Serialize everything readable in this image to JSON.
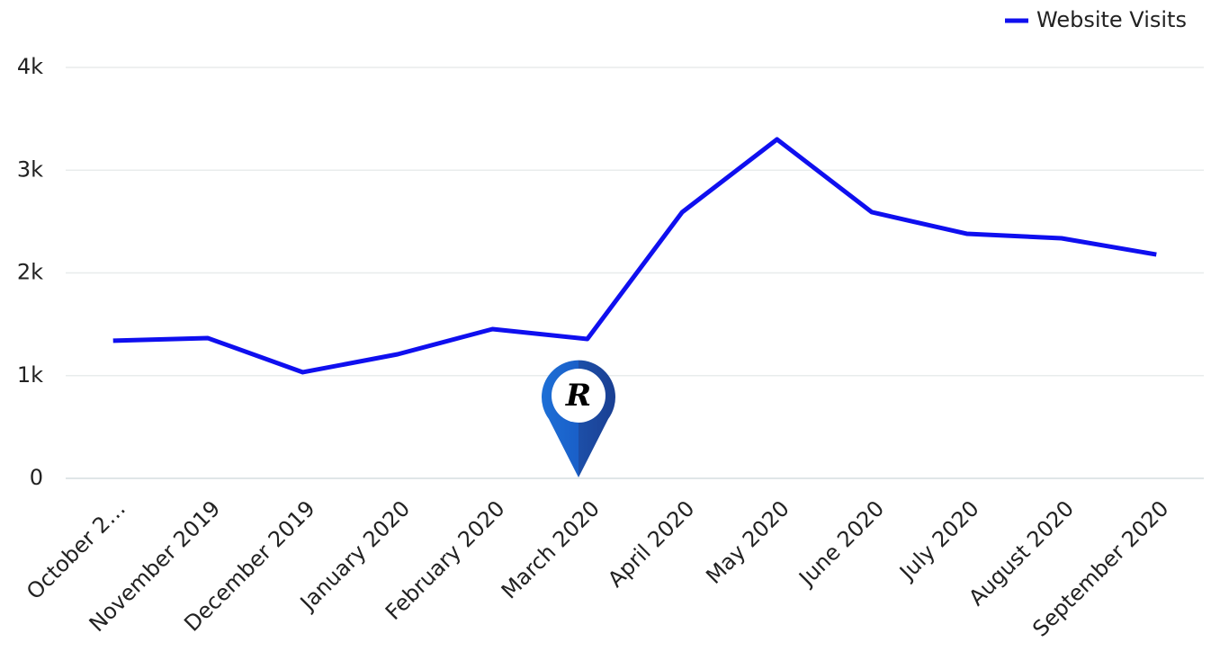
{
  "chart_data": {
    "type": "line",
    "categories": [
      "October 2…",
      "November 2019",
      "December 2019",
      "January 2020",
      "February 2020",
      "March 2020",
      "April 2020",
      "May 2020",
      "June 2020",
      "July 2020",
      "August 2020",
      "September 2020"
    ],
    "series": [
      {
        "name": "Website Visits",
        "color": "#0f0fef",
        "values": [
          1340,
          1365,
          1033,
          1208,
          1453,
          1357,
          2591,
          3300,
          2591,
          2381,
          2337,
          2179
        ]
      }
    ],
    "ylim": [
      0,
      4000
    ],
    "yticks": [
      0,
      {
        "value": 1000,
        "label": "1k"
      },
      {
        "value": 2000,
        "label": "2k"
      },
      {
        "value": 3000,
        "label": "3k"
      },
      {
        "value": 4000,
        "label": "4k"
      }
    ],
    "grid": true,
    "legend": "top-right"
  }
}
